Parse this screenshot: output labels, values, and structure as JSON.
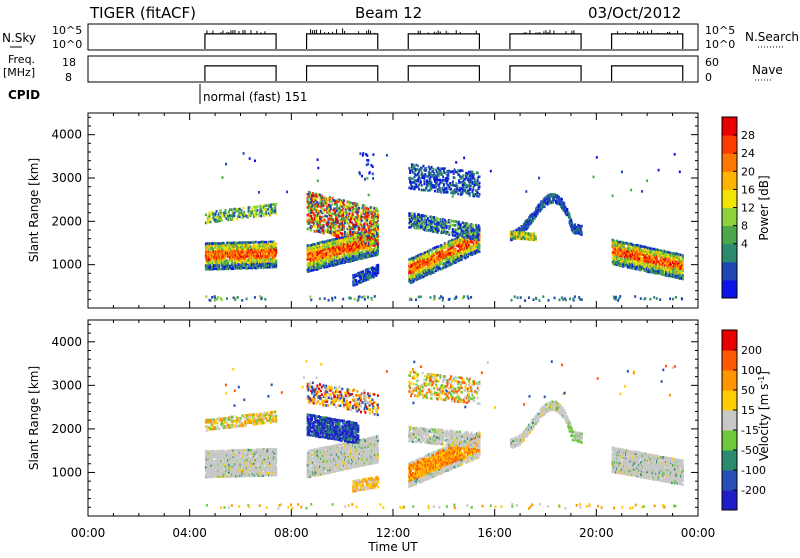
{
  "header": {
    "radar": "TIGER (fitACF)",
    "beam": "Beam 12",
    "date": "03/Oct/2012"
  },
  "strip_labels": {
    "nsky": "N.Sky",
    "nsky_ticks": [
      "10^5",
      "10^0"
    ],
    "freq": "Freq.",
    "freq_unit": "[MHz]",
    "freq_ticks": [
      "18",
      "8"
    ],
    "cpid": "CPID",
    "nsearch": "N.Search",
    "nsearch_ticks": [
      "10^5",
      "10^0"
    ],
    "nave": "Nave",
    "nave_ticks": [
      "60",
      "0"
    ],
    "cpid_mode": "normal (fast) 151"
  },
  "colors": {
    "power": [
      "#0a14e6",
      "#1e46b4",
      "#2e8a6e",
      "#4aa84a",
      "#8cd23c",
      "#f0e600",
      "#ffb400",
      "#ff7800",
      "#ff3c00",
      "#e60000"
    ],
    "velocity": [
      "#1e1ec8",
      "#2850b4",
      "#2e8a6e",
      "#6ec83c",
      "#c8c8c8",
      "#ffcc00",
      "#ff9600",
      "#ff5a00",
      "#e60000"
    ]
  },
  "chart_data": [
    {
      "type": "heatmap",
      "name": "power",
      "ylabel": "Slant Range [km]",
      "ylim": [
        0,
        4500
      ],
      "y_ticks": [
        1000,
        2000,
        3000,
        4000
      ],
      "xlim": [
        0,
        24
      ],
      "colorbar_label": "Power [dB]",
      "colorbar_ticks": [
        "28",
        "24",
        "20",
        "16",
        "12",
        "8",
        "4"
      ],
      "scan_blocks": [
        [
          4.6,
          7.4
        ],
        [
          8.6,
          11.4
        ],
        [
          12.6,
          15.4
        ],
        [
          16.6,
          19.4
        ],
        [
          20.6,
          23.4
        ]
      ]
    },
    {
      "type": "heatmap",
      "name": "velocity",
      "ylabel": "Slant Range [km]",
      "ylim": [
        0,
        4500
      ],
      "y_ticks": [
        1000,
        2000,
        3000,
        4000
      ],
      "xlim": [
        0,
        24
      ],
      "xlabel": "Time UT",
      "x_ticks": [
        "00:00",
        "04:00",
        "08:00",
        "12:00",
        "16:00",
        "20:00",
        "00:00"
      ],
      "colorbar_label": "Velocity [m s^-1]",
      "colorbar_ticks": [
        "200",
        "100",
        "50",
        "15",
        "-15",
        "-50",
        "-100",
        "-200"
      ]
    }
  ]
}
